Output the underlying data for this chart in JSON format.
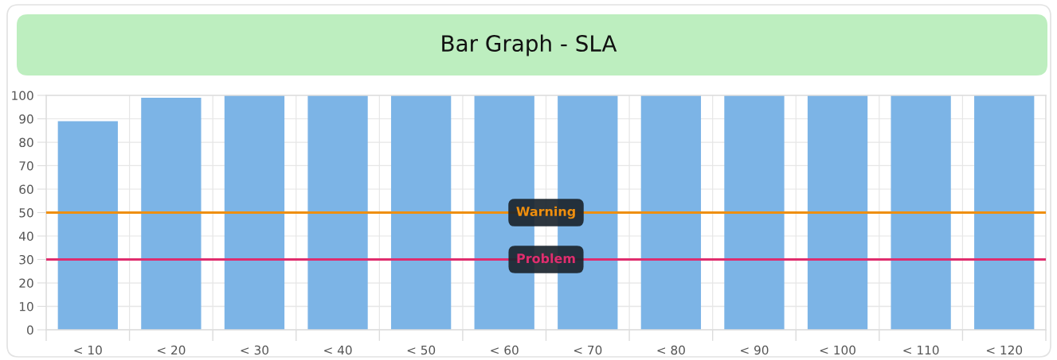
{
  "chart_data": {
    "type": "bar",
    "title": "Bar Graph - SLA",
    "categories": [
      "< 10",
      "< 20",
      "< 30",
      "< 40",
      "< 50",
      "< 60",
      "< 70",
      "< 80",
      "< 90",
      "< 100",
      "< 110",
      "< 120"
    ],
    "values": [
      89,
      99,
      100,
      100,
      100,
      100,
      100,
      100,
      100,
      100,
      100,
      100
    ],
    "color": "#7cb4e6",
    "ylim": [
      0,
      100
    ],
    "yticks": [
      0,
      10,
      20,
      30,
      40,
      50,
      60,
      70,
      80,
      90,
      100
    ],
    "grid": true,
    "ref_lines": [
      {
        "axis": "y",
        "value": 50,
        "label": "Warning",
        "color": "#ef8f0e"
      },
      {
        "axis": "y",
        "value": 30,
        "label": "Problem",
        "color": "#e02d6e"
      }
    ]
  }
}
